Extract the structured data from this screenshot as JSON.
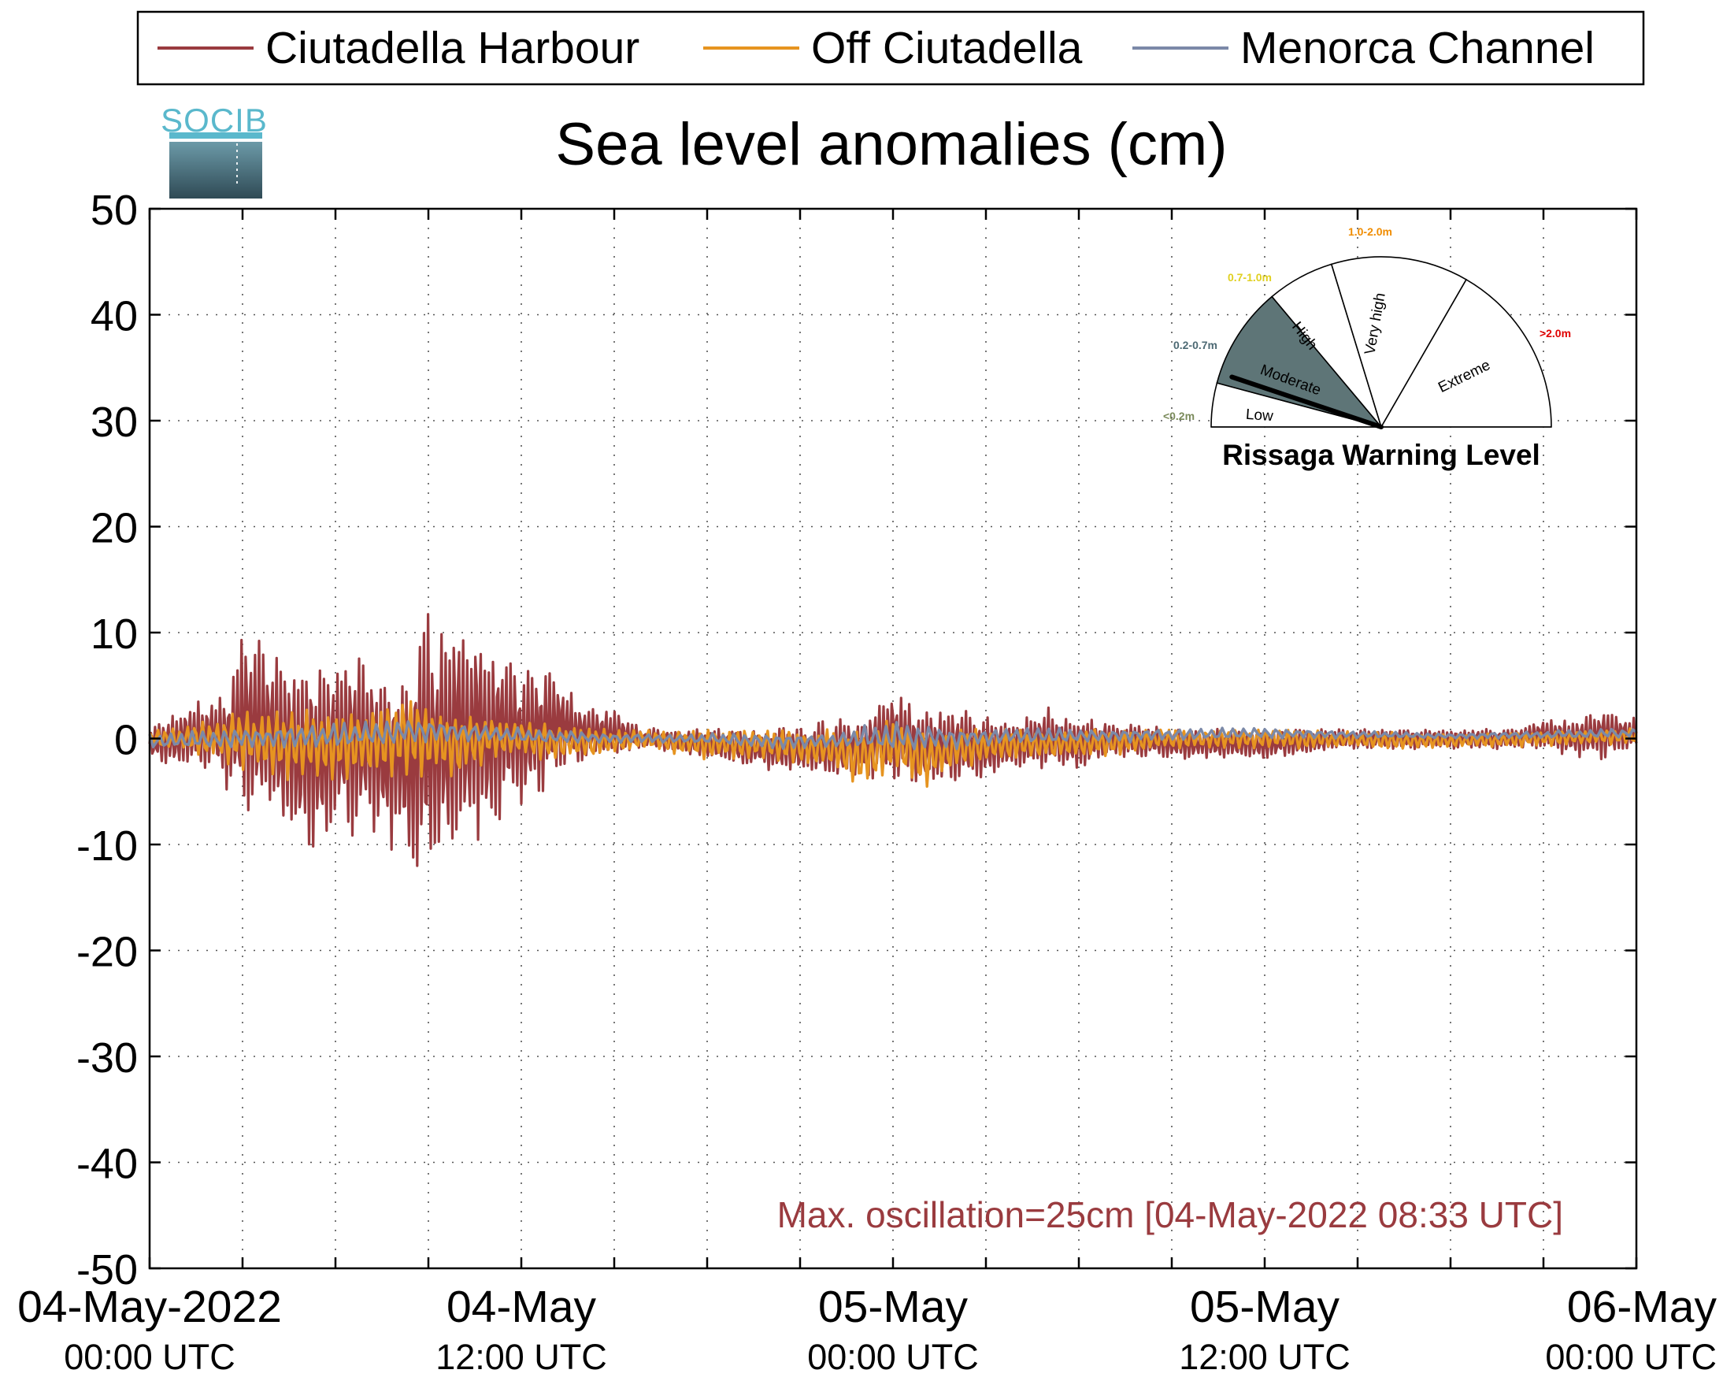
{
  "chart_data": {
    "type": "line",
    "title": "Sea level anomalies (cm)",
    "logo_text": "SOCIB",
    "xlabel": "",
    "ylabel": "",
    "ylim": [
      -50,
      50
    ],
    "yticks": [
      -50,
      -40,
      -30,
      -20,
      -10,
      0,
      10,
      20,
      30,
      40,
      50
    ],
    "xlim_hours": [
      0,
      48
    ],
    "x_axis_start": "04-May-2022 00:00 UTC",
    "x_axis_end": "06-May-2022 00:00 UTC",
    "xticks_hours": [
      0,
      3,
      6,
      9,
      12,
      15,
      18,
      21,
      24,
      27,
      30,
      33,
      36,
      39,
      42,
      45,
      48
    ],
    "xtick_labels": [
      {
        "hour": 0,
        "line1": "04-May-2022",
        "line2": "00:00 UTC"
      },
      {
        "hour": 12,
        "line1": "04-May",
        "line2": "12:00 UTC"
      },
      {
        "hour": 24,
        "line1": "05-May",
        "line2": "00:00 UTC"
      },
      {
        "hour": 36,
        "line1": "05-May",
        "line2": "12:00 UTC"
      },
      {
        "hour": 48,
        "line1": "06-May",
        "line2": "00:00 UTC"
      }
    ],
    "grid": true,
    "legend_position": "top",
    "series": [
      {
        "name": "Ciutadella Harbour",
        "color": "#9a3b3f",
        "envelope": [
          {
            "hour": 0,
            "max": 1,
            "min": -2
          },
          {
            "hour": 1,
            "max": 3,
            "min": -3
          },
          {
            "hour": 2,
            "max": 4,
            "min": -3
          },
          {
            "hour": 2.5,
            "max": 5,
            "min": -5
          },
          {
            "hour": 3,
            "max": 11,
            "min": -8
          },
          {
            "hour": 4,
            "max": 8,
            "min": -8
          },
          {
            "hour": 4.6,
            "max": 8,
            "min": -11
          },
          {
            "hour": 5.5,
            "max": 8,
            "min": -11
          },
          {
            "hour": 6,
            "max": 8,
            "min": -9
          },
          {
            "hour": 6.5,
            "max": 9,
            "min": -10
          },
          {
            "hour": 7.3,
            "max": 8,
            "min": -10
          },
          {
            "hour": 7.8,
            "max": 7,
            "min": -11
          },
          {
            "hour": 8,
            "max": 6,
            "min": -9
          },
          {
            "hour": 8.5,
            "max": 9,
            "min": -14
          },
          {
            "hour": 8.8,
            "max": 14,
            "min": -14
          },
          {
            "hour": 9.2,
            "max": 11,
            "min": -14
          },
          {
            "hour": 10,
            "max": 12,
            "min": -11
          },
          {
            "hour": 10.5,
            "max": 12,
            "min": -10
          },
          {
            "hour": 11,
            "max": 9,
            "min": -9
          },
          {
            "hour": 11.5,
            "max": 10,
            "min": -8
          },
          {
            "hour": 12,
            "max": 7,
            "min": -7
          },
          {
            "hour": 12.8,
            "max": 7,
            "min": -5
          },
          {
            "hour": 13,
            "max": 7,
            "min": -4
          },
          {
            "hour": 14,
            "max": 3,
            "min": -2
          },
          {
            "hour": 15,
            "max": 3,
            "min": -2
          },
          {
            "hour": 16,
            "max": 1,
            "min": -1
          },
          {
            "hour": 18,
            "max": 1,
            "min": -2
          },
          {
            "hour": 20,
            "max": 1,
            "min": -3
          },
          {
            "hour": 22,
            "max": 2,
            "min": -4
          },
          {
            "hour": 23,
            "max": 2,
            "min": -4
          },
          {
            "hour": 24,
            "max": 5,
            "min": -4
          },
          {
            "hour": 25,
            "max": 3,
            "min": -5
          },
          {
            "hour": 26,
            "max": 3,
            "min": -4
          },
          {
            "hour": 27,
            "max": 2,
            "min": -4
          },
          {
            "hour": 28,
            "max": 2,
            "min": -3
          },
          {
            "hour": 29,
            "max": 3,
            "min": -3
          },
          {
            "hour": 30,
            "max": 2,
            "min": -3
          },
          {
            "hour": 31,
            "max": 2,
            "min": -2
          },
          {
            "hour": 33,
            "max": 1,
            "min": -2
          },
          {
            "hour": 36,
            "max": 1,
            "min": -2
          },
          {
            "hour": 39,
            "max": 1,
            "min": -1
          },
          {
            "hour": 42,
            "max": 1,
            "min": -1
          },
          {
            "hour": 44,
            "max": 1,
            "min": -1
          },
          {
            "hour": 45,
            "max": 2,
            "min": -1
          },
          {
            "hour": 46,
            "max": 2,
            "min": -2
          },
          {
            "hour": 47,
            "max": 3,
            "min": -2
          },
          {
            "hour": 48,
            "max": 2,
            "min": -1
          }
        ]
      },
      {
        "name": "Off Ciutadella",
        "color": "#e69420",
        "envelope": [
          {
            "hour": 0,
            "max": 1,
            "min": -1
          },
          {
            "hour": 1,
            "max": 1,
            "min": -1
          },
          {
            "hour": 2,
            "max": 2,
            "min": -2
          },
          {
            "hour": 3,
            "max": 3,
            "min": -3
          },
          {
            "hour": 4,
            "max": 3,
            "min": -4
          },
          {
            "hour": 5,
            "max": 3,
            "min": -4
          },
          {
            "hour": 6,
            "max": 3,
            "min": -4
          },
          {
            "hour": 7,
            "max": 3,
            "min": -4
          },
          {
            "hour": 8,
            "max": 4,
            "min": -4
          },
          {
            "hour": 9,
            "max": 4,
            "min": -4
          },
          {
            "hour": 10,
            "max": 3,
            "min": -4
          },
          {
            "hour": 11,
            "max": 2,
            "min": -2
          },
          {
            "hour": 12,
            "max": 2,
            "min": -2
          },
          {
            "hour": 14,
            "max": 1,
            "min": -2
          },
          {
            "hour": 16,
            "max": 1,
            "min": -1
          },
          {
            "hour": 18,
            "max": 1,
            "min": -2
          },
          {
            "hour": 20,
            "max": 1,
            "min": -2
          },
          {
            "hour": 22,
            "max": 1,
            "min": -3
          },
          {
            "hour": 23,
            "max": 1,
            "min": -5
          },
          {
            "hour": 24,
            "max": 2,
            "min": -3
          },
          {
            "hour": 25,
            "max": 1,
            "min": -5
          },
          {
            "hour": 26,
            "max": 1,
            "min": -3
          },
          {
            "hour": 28,
            "max": 1,
            "min": -2
          },
          {
            "hour": 30,
            "max": 1,
            "min": -2
          },
          {
            "hour": 33,
            "max": 1,
            "min": -1
          },
          {
            "hour": 36,
            "max": 1,
            "min": -1
          },
          {
            "hour": 42,
            "max": 0.5,
            "min": -1
          },
          {
            "hour": 48,
            "max": 1,
            "min": -0.5
          }
        ]
      },
      {
        "name": "Menorca Channel",
        "color": "#7b89a8",
        "envelope": [
          {
            "hour": 0,
            "max": 0.5,
            "min": -1
          },
          {
            "hour": 3,
            "max": 1,
            "min": -1
          },
          {
            "hour": 6,
            "max": 1.5,
            "min": -1
          },
          {
            "hour": 9,
            "max": 2,
            "min": -0.5
          },
          {
            "hour": 12,
            "max": 1,
            "min": -0.5
          },
          {
            "hour": 15,
            "max": 0.5,
            "min": -0.5
          },
          {
            "hour": 18,
            "max": 0.5,
            "min": -0.5
          },
          {
            "hour": 20,
            "max": 0.5,
            "min": -1
          },
          {
            "hour": 22,
            "max": 0.5,
            "min": -1
          },
          {
            "hour": 24,
            "max": 2,
            "min": -1.5
          },
          {
            "hour": 26,
            "max": 1,
            "min": -1
          },
          {
            "hour": 28,
            "max": 1,
            "min": -0.5
          },
          {
            "hour": 30,
            "max": 1,
            "min": -0.5
          },
          {
            "hour": 36,
            "max": 1,
            "min": 0
          },
          {
            "hour": 42,
            "max": 0.5,
            "min": 0
          },
          {
            "hour": 48,
            "max": 1,
            "min": 0
          }
        ]
      }
    ],
    "annotation": "Max. oscillation=25cm [04-May-2022 08:33 UTC]",
    "annotation_color": "#9a3b3f",
    "gauge": {
      "title": "Rissaga Warning Level",
      "sectors": [
        {
          "name": "Low",
          "range_label": "<0.2m",
          "range_color": "#7a8a5a",
          "fill": "#ffffff"
        },
        {
          "name": "Moderate",
          "range_label": "0.2-0.7m",
          "range_color": "#4d6a74",
          "fill": "#5e7577"
        },
        {
          "name": "High",
          "range_label": "0.7-1.0m",
          "range_color": "#e0d020",
          "fill": "#ffffff"
        },
        {
          "name": "Very high",
          "range_label": "1.0-2.0m",
          "range_color": "#f08c00",
          "fill": "#ffffff"
        },
        {
          "name": "Extreme",
          "range_label": ">2.0m",
          "range_color": "#e00000",
          "fill": "#ffffff"
        }
      ],
      "active_level": "Moderate",
      "needle_value_m": 0.25
    }
  }
}
